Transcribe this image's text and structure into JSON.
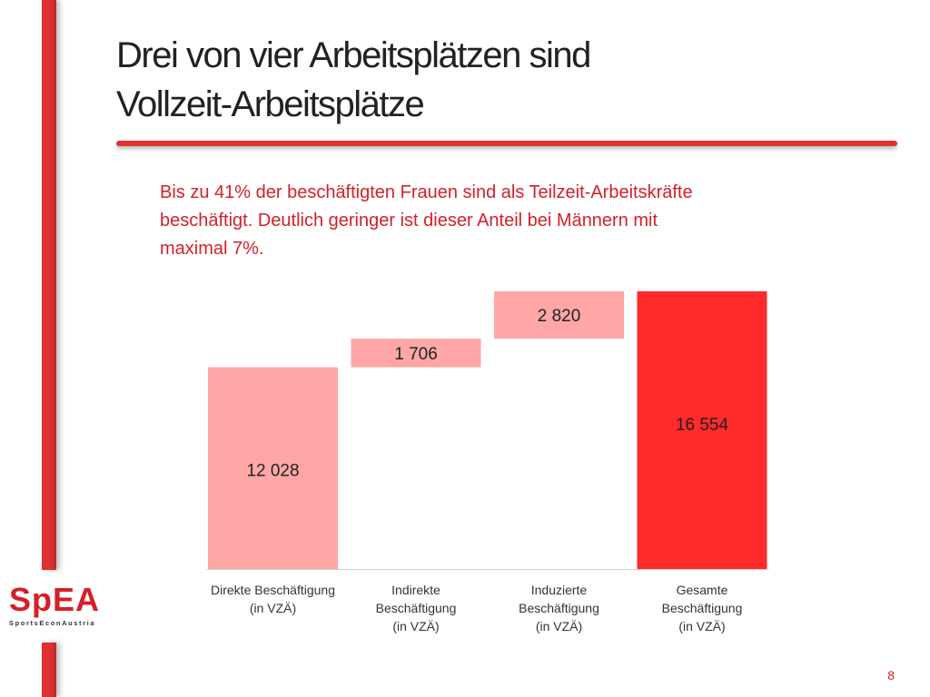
{
  "slide": {
    "title_lines": [
      "Drei von vier Arbeitsplätzen sind",
      "Vollzeit-Arbeitsplätze"
    ],
    "subtitle_lines": [
      "Bis zu 41% der beschäftigten Frauen sind als Teilzeit-Arbeitskräfte",
      "beschäftigt. Deutlich geringer ist dieser Anteil bei Männern mit",
      "maximal 7%."
    ],
    "page_number": "8",
    "accent_color": "#e03030"
  },
  "logo": {
    "main": "SpEA",
    "sub": "SportsEconAustria"
  },
  "chart_data": {
    "type": "bar",
    "subtype": "waterfall",
    "categories": [
      [
        "Direkte Beschäftigung",
        "(in VZÄ)"
      ],
      [
        "Indirekte",
        "Beschäftigung",
        "(in VZÄ)"
      ],
      [
        "Induzierte",
        "Beschäftigung",
        "(in VZÄ)"
      ],
      [
        "Gesamte",
        "Beschäftigung",
        "(in VZÄ)"
      ]
    ],
    "values": [
      12028,
      1706,
      2820,
      16554
    ],
    "labels": [
      "12 028",
      "1 706",
      "2 820",
      "16 554"
    ],
    "bar_types": [
      "start",
      "increment",
      "increment",
      "total"
    ],
    "colors": {
      "start": "#ffa6a6",
      "increment": "#ffa6a6",
      "total": "#ff2a2a",
      "label": "#222222"
    },
    "ylim": [
      0,
      16554
    ],
    "grid": false,
    "legend": "none"
  }
}
